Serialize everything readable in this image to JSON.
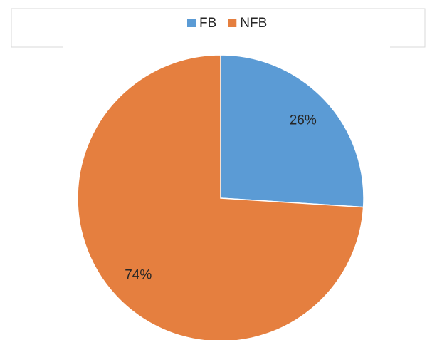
{
  "chart_data": {
    "type": "pie",
    "categories": [
      "FB",
      "NFB"
    ],
    "values": [
      26,
      74
    ],
    "value_labels": [
      "26%",
      "74%"
    ],
    "colors": [
      "#5b9bd5",
      "#e57f3f"
    ],
    "legend": "top"
  }
}
